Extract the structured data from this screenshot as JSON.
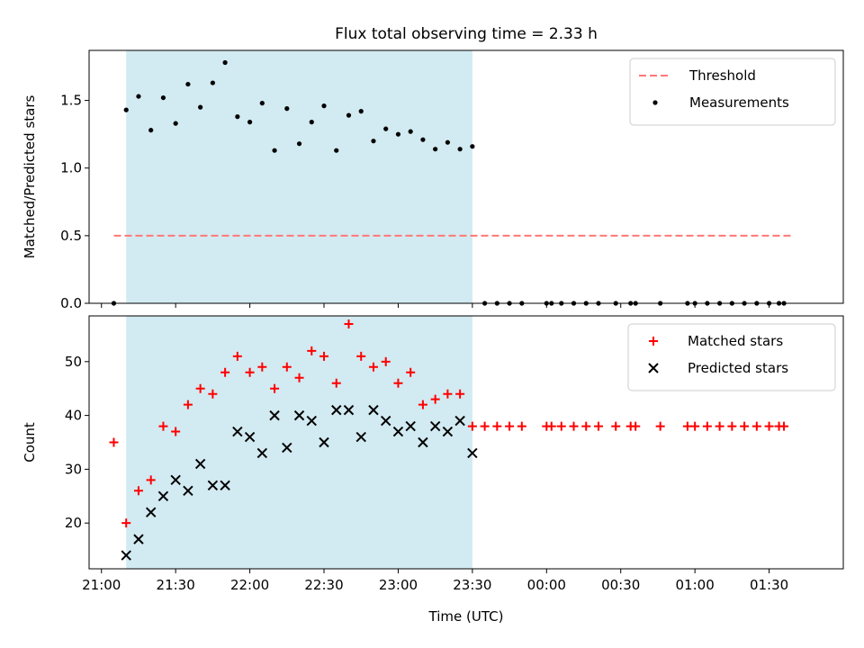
{
  "title": "Flux total observing time = 2.33 h",
  "xlabel": "Time (UTC)",
  "x_ticks": [
    "21:00",
    "21:30",
    "22:00",
    "22:30",
    "23:00",
    "23:30",
    "00:00",
    "00:30",
    "01:00",
    "01:30"
  ],
  "chart_data": [
    {
      "type": "scatter",
      "ylabel": "Matched/Predicted stars",
      "xlim": [
        "20:55",
        "02:00"
      ],
      "ylim": [
        0,
        1.87
      ],
      "y_ticks": [
        0.0,
        0.5,
        1.0,
        1.5
      ],
      "y_tick_labels": [
        "0.0",
        "0.5",
        "1.0",
        "1.5"
      ],
      "legend_position": "top-right",
      "shaded_region": {
        "x": [
          "21:10",
          "23:30"
        ],
        "color": "#add8e6"
      },
      "series": [
        {
          "name": "Threshold",
          "kind": "dashed-line",
          "color": "#ff7777",
          "x": [
            "21:05",
            "01:40"
          ],
          "y": [
            0.5,
            0.5
          ]
        },
        {
          "name": "Measurements",
          "kind": "points",
          "color": "#000000",
          "x": [
            "21:05",
            "21:10",
            "21:15",
            "21:20",
            "21:25",
            "21:30",
            "21:35",
            "21:40",
            "21:45",
            "21:50",
            "21:55",
            "22:00",
            "22:05",
            "22:10",
            "22:15",
            "22:20",
            "22:25",
            "22:30",
            "22:35",
            "22:40",
            "22:45",
            "22:50",
            "22:55",
            "23:00",
            "23:05",
            "23:10",
            "23:15",
            "23:20",
            "23:25",
            "23:30",
            "23:35",
            "23:40",
            "23:45",
            "23:50",
            "00:00",
            "00:02",
            "00:06",
            "00:11",
            "00:16",
            "00:21",
            "00:28",
            "00:34",
            "00:36",
            "00:46",
            "00:57",
            "01:00",
            "01:05",
            "01:10",
            "01:15",
            "01:20",
            "01:25",
            "01:30",
            "01:34",
            "01:36"
          ],
          "y": [
            0.0,
            1.43,
            1.53,
            1.28,
            1.52,
            1.33,
            1.62,
            1.45,
            1.63,
            1.78,
            1.38,
            1.34,
            1.48,
            1.13,
            1.44,
            1.18,
            1.34,
            1.46,
            1.13,
            1.39,
            1.42,
            1.2,
            1.29,
            1.25,
            1.27,
            1.21,
            1.14,
            1.19,
            1.14,
            1.16,
            0.0,
            0.0,
            0.0,
            0.0,
            0.0,
            0.0,
            0.0,
            0.0,
            0.0,
            0.0,
            0.0,
            0.0,
            0.0,
            0.0,
            0.0,
            0.0,
            0.0,
            0.0,
            0.0,
            0.0,
            0.0,
            0.0,
            0.0,
            0.0
          ]
        }
      ]
    },
    {
      "type": "scatter",
      "ylabel": "Count",
      "xlim": [
        "20:55",
        "02:00"
      ],
      "ylim": [
        11.5,
        58.5
      ],
      "y_ticks": [
        20,
        30,
        40,
        50
      ],
      "y_tick_labels": [
        "20",
        "30",
        "40",
        "50"
      ],
      "legend_position": "top-right",
      "shaded_region": {
        "x": [
          "21:10",
          "23:30"
        ],
        "color": "#add8e6"
      },
      "series": [
        {
          "name": "Matched stars",
          "kind": "plus",
          "color": "#ff0000",
          "x": [
            "21:05",
            "21:10",
            "21:15",
            "21:20",
            "21:25",
            "21:30",
            "21:35",
            "21:40",
            "21:45",
            "21:50",
            "21:55",
            "22:00",
            "22:05",
            "22:10",
            "22:15",
            "22:20",
            "22:25",
            "22:30",
            "22:35",
            "22:40",
            "22:45",
            "22:50",
            "22:55",
            "23:00",
            "23:05",
            "23:10",
            "23:15",
            "23:20",
            "23:25",
            "23:30",
            "23:35",
            "23:40",
            "23:45",
            "23:50",
            "00:00",
            "00:02",
            "00:06",
            "00:11",
            "00:16",
            "00:21",
            "00:28",
            "00:34",
            "00:36",
            "00:46",
            "00:57",
            "01:00",
            "01:05",
            "01:10",
            "01:15",
            "01:20",
            "01:25",
            "01:30",
            "01:34",
            "01:36"
          ],
          "y": [
            35,
            20,
            26,
            28,
            38,
            37,
            42,
            45,
            44,
            48,
            51,
            48,
            49,
            45,
            49,
            47,
            52,
            51,
            46,
            57,
            51,
            49,
            50,
            46,
            48,
            42,
            43,
            44,
            44,
            38,
            38,
            38,
            38,
            38,
            38,
            38,
            38,
            38,
            38,
            38,
            38,
            38,
            38,
            38,
            38,
            38,
            38,
            38,
            38,
            38,
            38,
            38,
            38,
            38
          ]
        },
        {
          "name": "Predicted stars",
          "kind": "x",
          "color": "#000000",
          "x": [
            "21:10",
            "21:15",
            "21:20",
            "21:25",
            "21:30",
            "21:35",
            "21:40",
            "21:45",
            "21:50",
            "21:55",
            "22:00",
            "22:05",
            "22:10",
            "22:15",
            "22:20",
            "22:25",
            "22:30",
            "22:35",
            "22:40",
            "22:45",
            "22:50",
            "22:55",
            "23:00",
            "23:05",
            "23:10",
            "23:15",
            "23:20",
            "23:25",
            "23:30"
          ],
          "y": [
            14,
            17,
            22,
            25,
            28,
            26,
            31,
            27,
            27,
            37,
            36,
            33,
            40,
            34,
            40,
            39,
            35,
            41,
            41,
            36,
            41,
            39,
            37,
            38,
            35,
            38,
            37,
            39,
            33
          ]
        }
      ]
    }
  ]
}
